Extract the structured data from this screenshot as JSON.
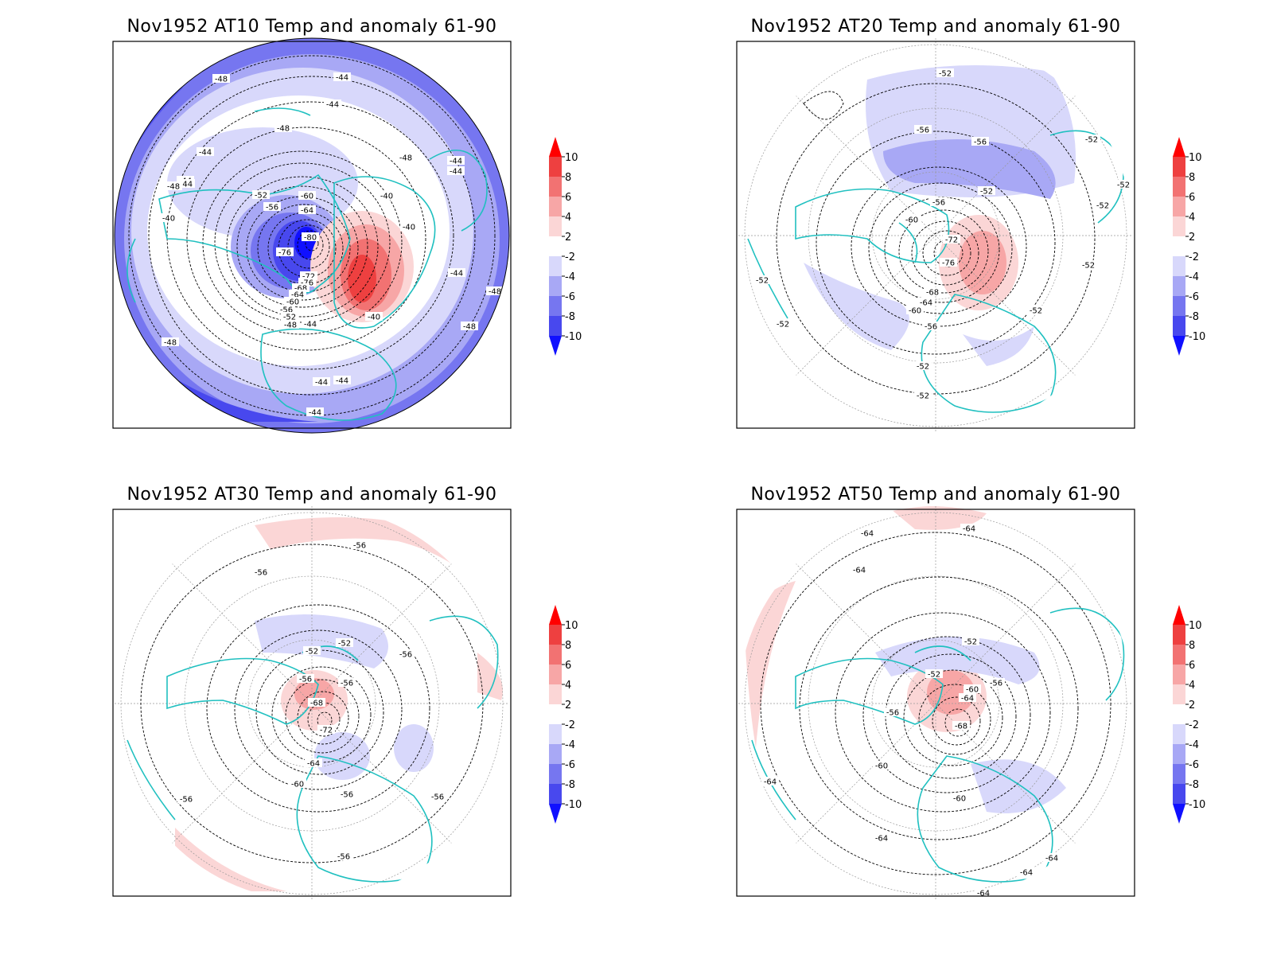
{
  "figure": {
    "panels": [
      {
        "id": "at10",
        "title": "Nov1952 AT10 Temp and anomaly 61-90",
        "contour_labels": [
          "-48",
          "-44",
          "-44",
          "-48",
          "-44",
          "-48",
          "-44",
          "-44",
          "-44",
          "-52",
          "-56",
          "-60",
          "-64",
          "-80",
          "-76",
          "-72",
          "-76",
          "-68",
          "-64",
          "-60",
          "-56",
          "-52",
          "-48",
          "-44",
          "-40",
          "-40",
          "-44",
          "-40",
          "-44",
          "-44",
          "-48",
          "-48",
          "-48",
          "-44",
          "-44",
          "-48",
          "-40"
        ]
      },
      {
        "id": "at20",
        "title": "Nov1952 AT20 Temp and anomaly 61-90",
        "contour_labels": [
          "-52",
          "-56",
          "-56",
          "-52",
          "-52",
          "-52",
          "-52",
          "-56",
          "-60",
          "-72",
          "-76",
          "-68",
          "-64",
          "-60",
          "-56",
          "-52",
          "-52",
          "-52",
          "-52",
          "-52",
          "-52"
        ]
      },
      {
        "id": "at30",
        "title": "Nov1952 AT30 Temp and anomaly 61-90",
        "contour_labels": [
          "-56",
          "-56",
          "-52",
          "-52",
          "-56",
          "-56",
          "-68",
          "-72",
          "-56",
          "-64",
          "-60",
          "-56",
          "-56",
          "-56",
          "-56"
        ]
      },
      {
        "id": "at50",
        "title": "Nov1952 AT50 Temp and anomaly 61-90",
        "contour_labels": [
          "-64",
          "-64",
          "-64",
          "-52",
          "-52",
          "-60",
          "-56",
          "-64",
          "-68",
          "-56",
          "-60",
          "-60",
          "-64",
          "-64",
          "-64",
          "-64",
          "-64"
        ]
      }
    ],
    "colorbar": {
      "levels": [
        "10",
        "8",
        "6",
        "4",
        "2",
        "-2",
        "-4",
        "-6",
        "-8",
        "-10"
      ],
      "colors": [
        "#ff0000",
        "#ee4040",
        "#f27272",
        "#f7a6a6",
        "#fbd6d6",
        "#ffffff",
        "#d8d8fb",
        "#a8a8f5",
        "#7676f0",
        "#4848ee",
        "#1010ff"
      ]
    },
    "map_colors": {
      "coast": "#20c0c0",
      "contour": "#000000",
      "grid": "#999999"
    }
  }
}
